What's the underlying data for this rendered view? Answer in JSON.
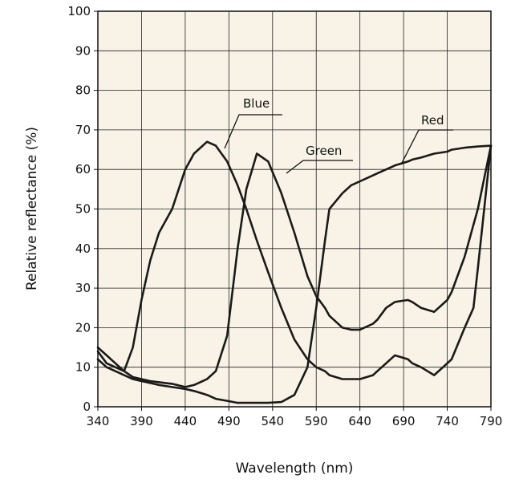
{
  "chart_data": {
    "type": "line",
    "x_label": "Wavelength (nm)",
    "y_label": "Relative reflectance (%)",
    "x": [
      340,
      350,
      360,
      370,
      380,
      390,
      400,
      410,
      425,
      440,
      450,
      465,
      475,
      488,
      500,
      510,
      522,
      535,
      550,
      565,
      580,
      590,
      600,
      605,
      620,
      630,
      640,
      655,
      660,
      670,
      680,
      695,
      700,
      710,
      725,
      740,
      745,
      760,
      770,
      775,
      790
    ],
    "series": [
      {
        "name": "Blue",
        "color": "#1a1a1a",
        "values": [
          14,
          11,
          10,
          9,
          15,
          27,
          37,
          44,
          50,
          60,
          64,
          67,
          66,
          62,
          56,
          50,
          42,
          34,
          25,
          17,
          12,
          10,
          9,
          8,
          7,
          7,
          7,
          8,
          9,
          11,
          13,
          12,
          11,
          10,
          8,
          11,
          12,
          20,
          25,
          35,
          66
        ]
      },
      {
        "name": "Green",
        "color": "#1a1a1a",
        "values": [
          15,
          13,
          11,
          9,
          7.5,
          7,
          6.5,
          6.2,
          5.8,
          5,
          5.5,
          7,
          9,
          18,
          40,
          55,
          64,
          62,
          54,
          44,
          33,
          28,
          25,
          23,
          20,
          19.5,
          19.5,
          21,
          22,
          25,
          26.5,
          27,
          26.5,
          25,
          24,
          27,
          29,
          38,
          46,
          50,
          66
        ]
      },
      {
        "name": "Red",
        "color": "#1a1a1a",
        "values": [
          12,
          10,
          9,
          8,
          7,
          6.5,
          6,
          5.5,
          5,
          4.5,
          4,
          3,
          2,
          1.5,
          1,
          1,
          1,
          1,
          1.2,
          3,
          10,
          25,
          42,
          50,
          54,
          56,
          57,
          58.5,
          59,
          60,
          61,
          62,
          62.5,
          63,
          64,
          64.5,
          65,
          65.5,
          65.7,
          65.8,
          66
        ]
      }
    ],
    "annotations": [
      "Blue",
      "Green",
      "Red"
    ],
    "xlim": [
      340,
      790
    ],
    "xticks": [
      340,
      390,
      440,
      490,
      540,
      590,
      640,
      690,
      740,
      790
    ],
    "ylim": [
      0,
      100
    ],
    "yticks": [
      0,
      10,
      20,
      30,
      40,
      50,
      60,
      70,
      80,
      90,
      100
    ],
    "grid": true,
    "background": "#f8f3e6"
  }
}
